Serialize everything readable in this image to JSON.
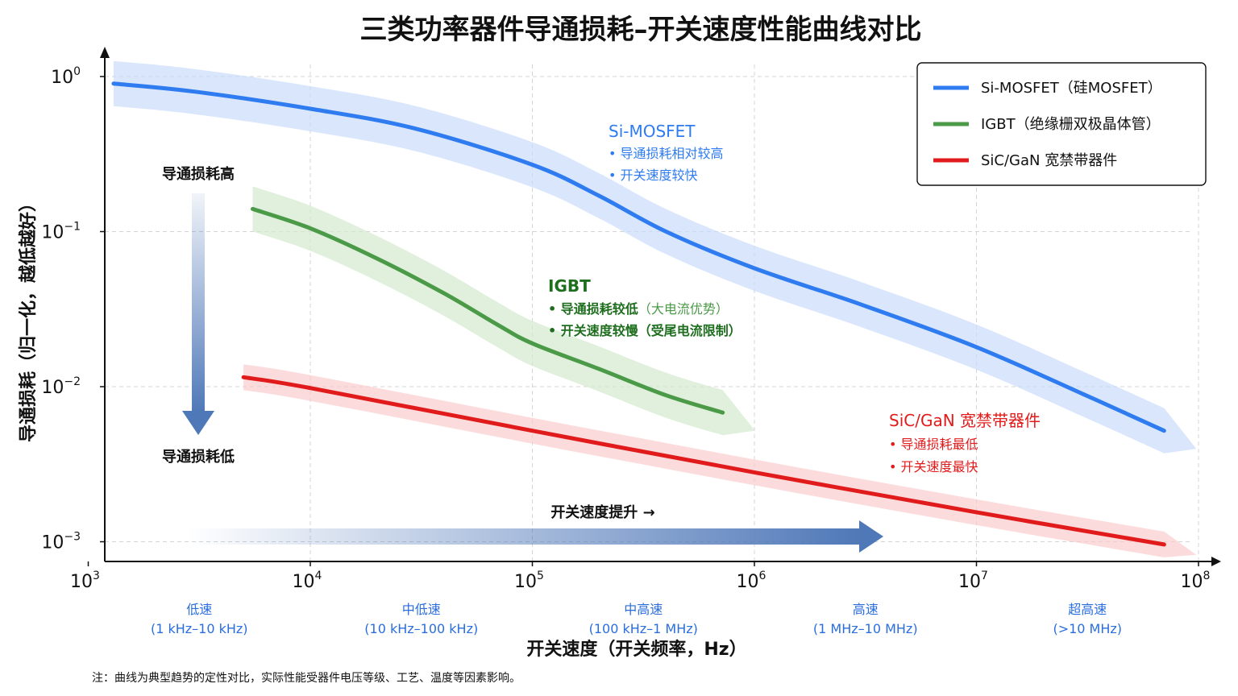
{
  "chart_data": {
    "type": "line",
    "title": "三类功率器件导通损耗–开关速度性能曲线对比",
    "xlabel": "开关速度（开关频率，Hz）",
    "ylabel": "导通损耗（归一化，越低越好）",
    "xscale": "log",
    "yscale": "log",
    "xlim": [
      800,
      100000000
    ],
    "ylim": [
      0.0006,
      1.6
    ],
    "x_ticks": [
      {
        "base": "10",
        "exp": "3"
      },
      {
        "base": "10",
        "exp": "4"
      },
      {
        "base": "10",
        "exp": "5"
      },
      {
        "base": "10",
        "exp": "6"
      },
      {
        "base": "10",
        "exp": "7"
      },
      {
        "base": "10",
        "exp": "8"
      }
    ],
    "y_ticks": [
      {
        "base": "10",
        "exp": "0"
      },
      {
        "base": "10",
        "exp": "−1"
      },
      {
        "base": "10",
        "exp": "−2"
      },
      {
        "base": "10",
        "exp": "−3"
      }
    ],
    "grid": true,
    "legend_position": "top-right",
    "series": [
      {
        "name": "Si-MOSFET（硅MOSFET）",
        "color": "#2f7bf0",
        "band_color": "#c9dcfb",
        "points": [
          [
            1300,
            0.9
          ],
          [
            3000,
            0.8
          ],
          [
            10000,
            0.62
          ],
          [
            30000,
            0.46
          ],
          [
            100000,
            0.27
          ],
          [
            200000,
            0.17
          ],
          [
            400000,
            0.1
          ],
          [
            1000000,
            0.058
          ],
          [
            3000000,
            0.034
          ],
          [
            10000000,
            0.018
          ],
          [
            30000000,
            0.009
          ],
          [
            70000000,
            0.0052
          ]
        ]
      },
      {
        "name": "IGBT（绝缘栅双极晶体管）",
        "color": "#4a9a48",
        "band_color": "#d3e9cf",
        "points": [
          [
            5500,
            0.14
          ],
          [
            10000,
            0.105
          ],
          [
            20000,
            0.067
          ],
          [
            40000,
            0.04
          ],
          [
            70000,
            0.025
          ],
          [
            100000,
            0.019
          ],
          [
            200000,
            0.013
          ],
          [
            400000,
            0.0088
          ],
          [
            720000,
            0.0068
          ]
        ]
      },
      {
        "name": "SiC/GaN 宽禁带器件",
        "color": "#e11b1b",
        "band_color": "#f9cccc",
        "points": [
          [
            5000,
            0.0115
          ],
          [
            10000,
            0.0098
          ],
          [
            100000,
            0.0052
          ],
          [
            1000000,
            0.0028
          ],
          [
            10000000,
            0.00155
          ],
          [
            70000000,
            0.00096
          ]
        ]
      }
    ],
    "range_labels": [
      {
        "name": "低速",
        "range": "(1 kHz–10 kHz)"
      },
      {
        "name": "中低速",
        "range": "(10 kHz–100 kHz)"
      },
      {
        "name": "中高速",
        "range": "(100 kHz–1 MHz)"
      },
      {
        "name": "高速",
        "range": "(1 MHz–10 MHz)"
      },
      {
        "name": "超高速",
        "range": "(>10 MHz)"
      }
    ],
    "annotations": {
      "si": {
        "title": "Si-MOSFET",
        "items": [
          "• 导通损耗相对较高",
          "• 开关速度较快"
        ]
      },
      "igbt": {
        "title": "IGBT",
        "item1": "• 导通损耗较低",
        "item1_note": "（大电流优势）",
        "item2": "• 开关速度较慢（受尾电流限制）"
      },
      "sic": {
        "title": "SiC/GaN 宽禁带器件",
        "items": [
          "• 导通损耗最低",
          "• 开关速度最快"
        ]
      }
    },
    "side_labels": {
      "high": "导通损耗高",
      "low": "导通损耗低"
    },
    "speed_label": "开关速度提升 →",
    "note": "注：曲线为典型趋势的定性对比，实际性能受器件电压等级、工艺、温度等因素影响。"
  }
}
